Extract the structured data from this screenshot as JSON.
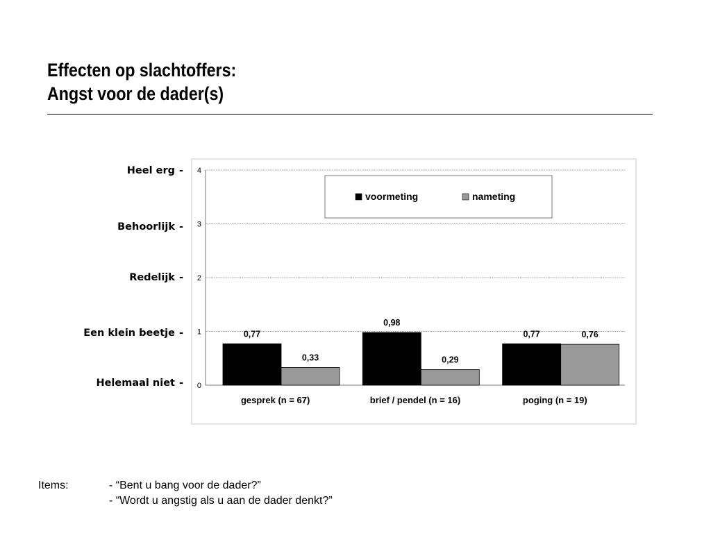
{
  "title": {
    "line1": "Effecten op slachtoffers:",
    "line2": "Angst voor de dader(s)"
  },
  "scale_labels": [
    {
      "text": "Heel erg",
      "value": 4
    },
    {
      "text": "Behoorlijk",
      "value": 3
    },
    {
      "text": "Redelijk",
      "value": 2
    },
    {
      "text": "Een klein beetje",
      "value": 1
    },
    {
      "text": "Helemaal niet",
      "value": 0
    }
  ],
  "chart_data": {
    "type": "bar",
    "categories": [
      "gesprek (n = 67)",
      "brief / pendel (n = 16)",
      "poging (n = 19)"
    ],
    "series": [
      {
        "name": "voormeting",
        "values": [
          0.77,
          0.98,
          0.77
        ],
        "labels": [
          "0,77",
          "0,98",
          "0,77"
        ],
        "color": "#000000"
      },
      {
        "name": "nameting",
        "values": [
          0.33,
          0.29,
          0.76
        ],
        "labels": [
          "0,33",
          "0,29",
          "0,76"
        ],
        "color": "#999999"
      }
    ],
    "ylim": [
      0,
      4
    ],
    "yticks": [
      "0",
      "1",
      "2",
      "3",
      "4"
    ],
    "grid": true,
    "legend": "top"
  },
  "footer": {
    "label": "Items:",
    "items": [
      "- “Bent u bang voor de dader?”",
      "- “Wordt u angstig als u aan de dader denkt?”"
    ]
  }
}
